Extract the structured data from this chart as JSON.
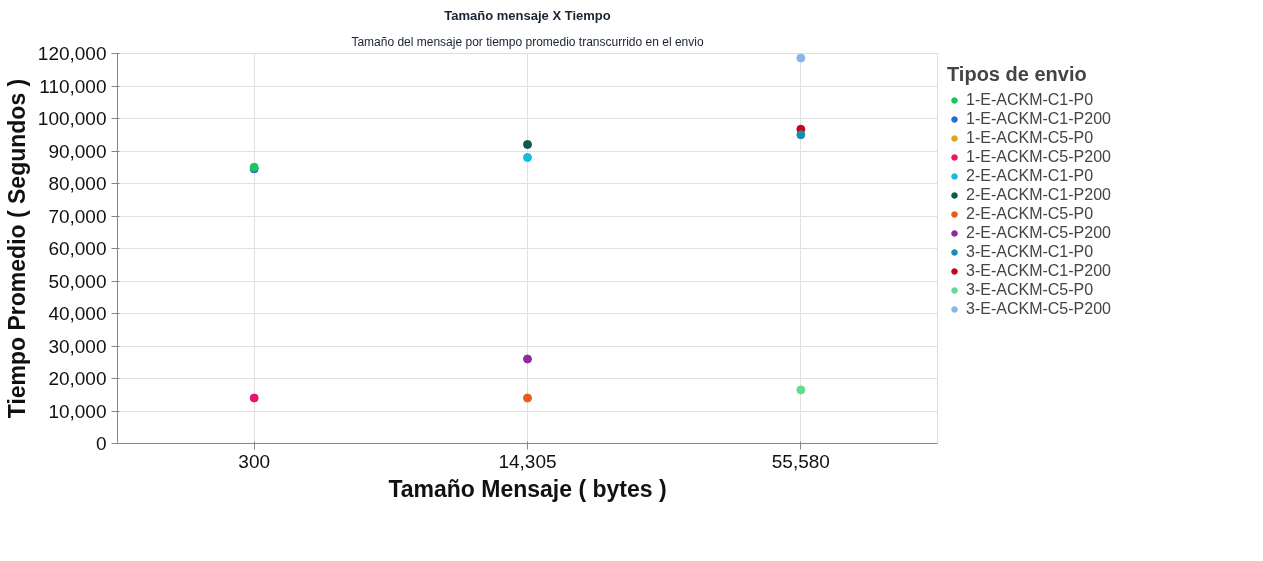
{
  "chart_data": {
    "type": "scatter",
    "title": "Tamaño mensaje X Tiempo",
    "subtitle": "Tamaño del mensaje por tiempo promedio transcurrido en el envio",
    "xlabel": "Tamaño Mensaje ( bytes )",
    "ylabel": "Tiempo Promedio ( Segundos )",
    "legend_title": "Tipos de envio",
    "categories": [
      "300",
      "14,305",
      "55,580"
    ],
    "ylim": [
      0,
      120000
    ],
    "yticks": [
      0,
      {
        "value": 10000,
        "label": "10,000"
      },
      {
        "value": 20000,
        "label": "20,000"
      },
      {
        "value": 30000,
        "label": "30,000"
      },
      {
        "value": 40000,
        "label": "40,000"
      },
      {
        "value": 50000,
        "label": "50,000"
      },
      {
        "value": 60000,
        "label": "60,000"
      },
      {
        "value": 70000,
        "label": "70,000"
      },
      {
        "value": 80000,
        "label": "80,000"
      },
      {
        "value": 90000,
        "label": "90,000"
      },
      {
        "value": 100000,
        "label": "100,000"
      },
      {
        "value": 110000,
        "label": "110,000"
      },
      {
        "value": 120000,
        "label": "120,000"
      }
    ],
    "grid": true,
    "legend": "right",
    "marker": "circle",
    "series": [
      {
        "name": "1-E-ACKM-C1-P0",
        "color": "#1dc45f",
        "x": [
          "300"
        ],
        "values": [
          85000
        ]
      },
      {
        "name": "1-E-ACKM-C1-P200",
        "color": "#1f6fd6",
        "x": [
          "300"
        ],
        "values": [
          84500
        ]
      },
      {
        "name": "1-E-ACKM-C5-P0",
        "color": "#e2a515",
        "x": [
          "300"
        ],
        "values": [
          null
        ]
      },
      {
        "name": "1-E-ACKM-C5-P200",
        "color": "#e8156b",
        "x": [
          "300"
        ],
        "values": [
          14000
        ]
      },
      {
        "name": "2-E-ACKM-C1-P0",
        "color": "#14bde0",
        "x": [
          "14,305"
        ],
        "values": [
          88000
        ]
      },
      {
        "name": "2-E-ACKM-C1-P200",
        "color": "#0d5b48",
        "x": [
          "14,305"
        ],
        "values": [
          92000
        ]
      },
      {
        "name": "2-E-ACKM-C5-P0",
        "color": "#e85d14",
        "x": [
          "14,305"
        ],
        "values": [
          14000
        ]
      },
      {
        "name": "2-E-ACKM-C5-P200",
        "color": "#8e2c9b",
        "x": [
          "14,305"
        ],
        "values": [
          26000
        ]
      },
      {
        "name": "3-E-ACKM-C1-P0",
        "color": "#1a8fa8",
        "x": [
          "55,580"
        ],
        "values": [
          95000
        ]
      },
      {
        "name": "3-E-ACKM-C1-P200",
        "color": "#c4061f",
        "x": [
          "55,580"
        ],
        "values": [
          96700
        ]
      },
      {
        "name": "3-E-ACKM-C5-P0",
        "color": "#5fdc8f",
        "x": [
          "55,580"
        ],
        "values": [
          16500
        ]
      },
      {
        "name": "3-E-ACKM-C5-P200",
        "color": "#8ab4ec",
        "x": [
          "55,580"
        ],
        "values": [
          118600
        ]
      }
    ]
  }
}
